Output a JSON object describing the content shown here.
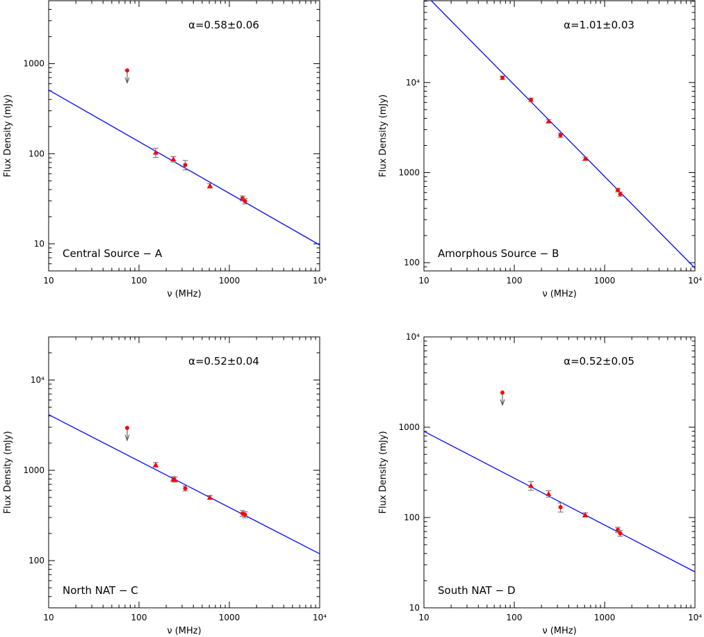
{
  "colors": {
    "fit_line": "#0000ff",
    "points": "#ff0000",
    "error_bars": "#808080",
    "upper_limit_arrow": "#606060"
  },
  "chart_data": [
    {
      "type": "scatter",
      "panel_label": "Central Source − A",
      "annotation": "α=0.58±0.06",
      "xlabel": "ν (MHz)",
      "ylabel": "Flux Density (mJy)",
      "xscale": "log",
      "yscale": "log",
      "xlim": [
        10,
        10000
      ],
      "ylim": [
        5,
        5000
      ],
      "xticks": [
        "10",
        "100",
        "1000",
        "10⁴"
      ],
      "xtick_values": [
        10,
        100,
        1000,
        10000
      ],
      "yticks": [
        "10",
        "100",
        "1000"
      ],
      "ytick_values": [
        10,
        100,
        1000
      ],
      "points": [
        {
          "x": 74,
          "y": 842,
          "marker": "circle",
          "upper_limit": true
        },
        {
          "x": 153,
          "y": 103,
          "err": 12,
          "marker": "triangle"
        },
        {
          "x": 240,
          "y": 87,
          "err": 6,
          "marker": "triangle"
        },
        {
          "x": 325,
          "y": 75,
          "err": 9,
          "marker": "circle"
        },
        {
          "x": 610,
          "y": 44,
          "err": 2.5,
          "marker": "triangle"
        },
        {
          "x": 1400,
          "y": 32,
          "err": 2,
          "marker": "circle"
        },
        {
          "x": 1490,
          "y": 29.7,
          "err": 2,
          "marker": "circle"
        }
      ],
      "fit_line": {
        "x": [
          10,
          10000
        ],
        "y": [
          510,
          9.7
        ]
      }
    },
    {
      "type": "scatter",
      "panel_label": "Amorphous Source − B",
      "annotation": "α=1.01±0.03",
      "xlabel": "ν (MHz)",
      "ylabel": "Flux Density (mJy)",
      "xscale": "log",
      "yscale": "log",
      "xlim": [
        10,
        10000
      ],
      "ylim": [
        81,
        81000
      ],
      "xticks": [
        "10",
        "100",
        "1000",
        "10⁴"
      ],
      "xtick_values": [
        10,
        100,
        1000,
        10000
      ],
      "yticks": [
        "100",
        "1000",
        "10⁴"
      ],
      "ytick_values": [
        100,
        1000,
        10000
      ],
      "points": [
        {
          "x": 74,
          "y": 11300,
          "err": 500,
          "marker": "circle"
        },
        {
          "x": 153,
          "y": 6420,
          "err": 300,
          "marker": "circle"
        },
        {
          "x": 240,
          "y": 3710,
          "err": 150,
          "marker": "triangle"
        },
        {
          "x": 325,
          "y": 2600,
          "err": 150,
          "marker": "circle"
        },
        {
          "x": 610,
          "y": 1425,
          "err": 60,
          "marker": "triangle"
        },
        {
          "x": 1400,
          "y": 640,
          "err": 30,
          "marker": "circle"
        },
        {
          "x": 1490,
          "y": 577,
          "err": 30,
          "marker": "circle"
        }
      ],
      "fit_line": {
        "x": [
          10,
          10000
        ],
        "y": [
          98000,
          87
        ]
      }
    },
    {
      "type": "scatter",
      "panel_label": "North NAT − C",
      "annotation": "α=0.52±0.04",
      "xlabel": "ν (MHz)",
      "ylabel": "Flux Density (mJy)",
      "xscale": "log",
      "yscale": "log",
      "xlim": [
        10,
        10000
      ],
      "ylim": [
        30,
        30000
      ],
      "xticks": [
        "10",
        "100",
        "1000",
        "10⁴"
      ],
      "xtick_values": [
        10,
        100,
        1000,
        10000
      ],
      "yticks": [
        "100",
        "1000",
        "10⁴"
      ],
      "ytick_values": [
        100,
        1000,
        10000
      ],
      "points": [
        {
          "x": 74,
          "y": 2950,
          "marker": "circle",
          "upper_limit": true
        },
        {
          "x": 153,
          "y": 1150,
          "err": 70,
          "marker": "triangle"
        },
        {
          "x": 240,
          "y": 800,
          "err": 50,
          "marker": "triangle"
        },
        {
          "x": 250,
          "y": 790,
          "err": 50,
          "marker": "triangle"
        },
        {
          "x": 325,
          "y": 630,
          "err": 40,
          "marker": "circle"
        },
        {
          "x": 610,
          "y": 500,
          "err": 25,
          "marker": "triangle"
        },
        {
          "x": 1400,
          "y": 333,
          "err": 25,
          "marker": "circle"
        },
        {
          "x": 1490,
          "y": 322,
          "err": 25,
          "marker": "circle"
        }
      ],
      "fit_line": {
        "x": [
          10,
          10000
        ],
        "y": [
          4130,
          119
        ]
      }
    },
    {
      "type": "scatter",
      "panel_label": "South NAT − D",
      "annotation": "α=0.52±0.05",
      "xlabel": "ν (MHz)",
      "ylabel": "Flux Density (mJy)",
      "xscale": "log",
      "yscale": "log",
      "xlim": [
        10,
        10000
      ],
      "ylim": [
        10,
        10000
      ],
      "xticks": [
        "10",
        "100",
        "1000",
        "10⁴"
      ],
      "xtick_values": [
        10,
        100,
        1000,
        10000
      ],
      "yticks": [
        "10",
        "100",
        "1000",
        "10⁴"
      ],
      "ytick_values": [
        10,
        100,
        1000,
        10000
      ],
      "points": [
        {
          "x": 74,
          "y": 2420,
          "marker": "circle",
          "upper_limit": true
        },
        {
          "x": 153,
          "y": 225,
          "err": 25,
          "marker": "triangle"
        },
        {
          "x": 240,
          "y": 183,
          "err": 15,
          "marker": "triangle"
        },
        {
          "x": 325,
          "y": 130,
          "err": 15,
          "marker": "circle"
        },
        {
          "x": 610,
          "y": 107,
          "err": 6,
          "marker": "triangle"
        },
        {
          "x": 1400,
          "y": 73,
          "err": 5,
          "marker": "circle"
        },
        {
          "x": 1490,
          "y": 67,
          "err": 5,
          "marker": "circle"
        }
      ],
      "fit_line": {
        "x": [
          10,
          10000
        ],
        "y": [
          900,
          25
        ]
      }
    }
  ]
}
